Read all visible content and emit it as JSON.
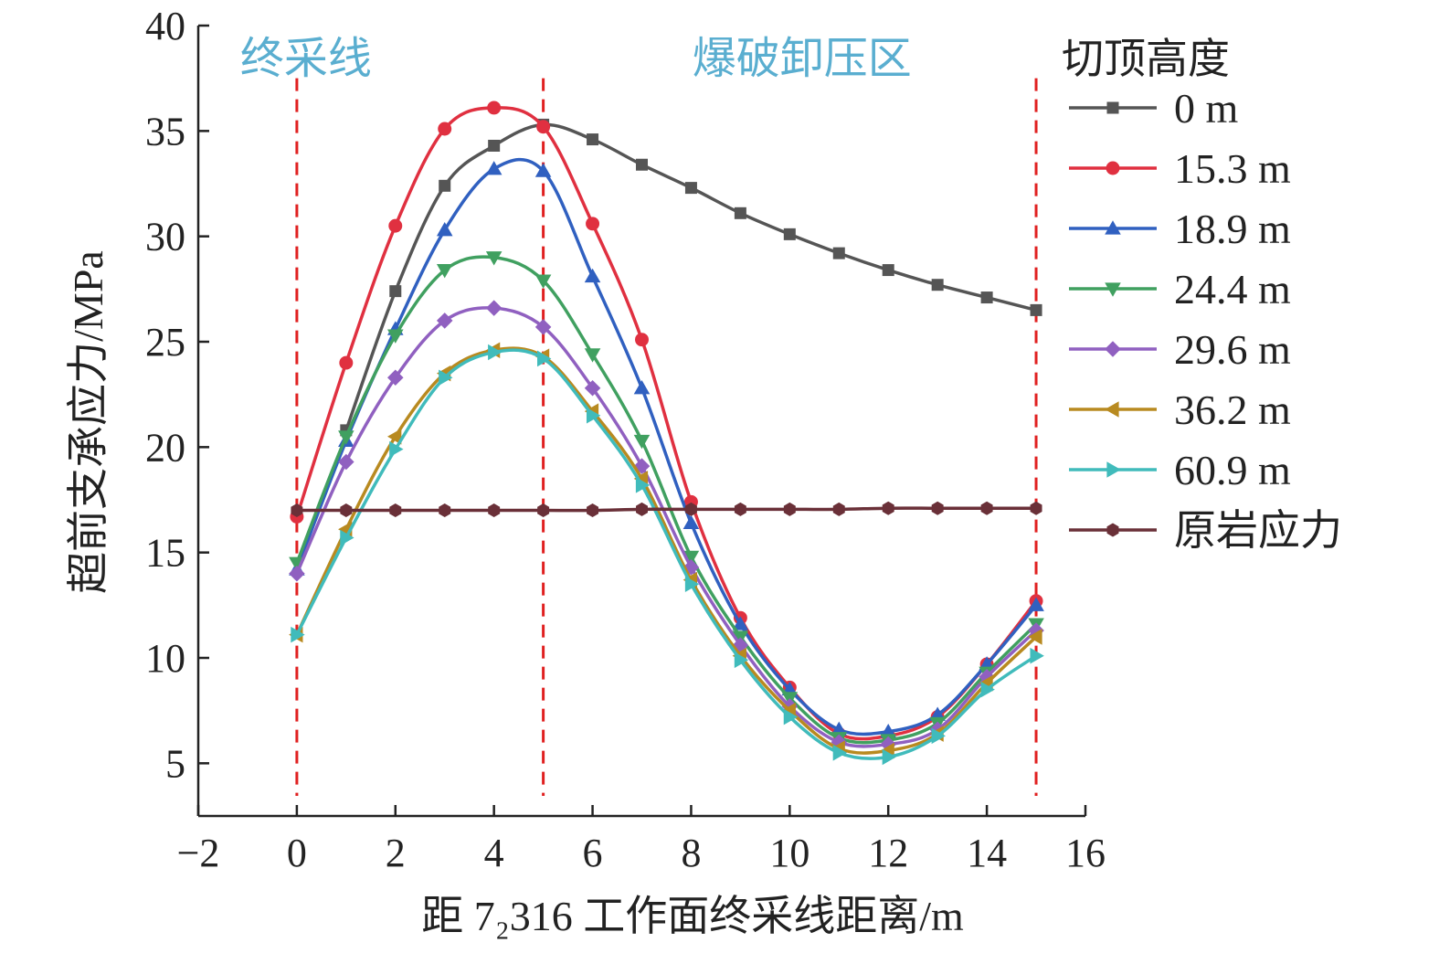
{
  "chart_data": {
    "type": "line",
    "title": "",
    "xlabel": "距 7₂316 工作面终采线距离/m",
    "ylabel": "超前支承应力/MPa",
    "xlim": [
      -2.0,
      16.0
    ],
    "ylim": [
      2.5,
      40.0
    ],
    "x_ticks": [
      -2,
      0,
      2,
      4,
      6,
      8,
      10,
      12,
      14,
      16
    ],
    "y_ticks": [
      5,
      10,
      15,
      20,
      25,
      30,
      35,
      40
    ],
    "x_tick_labels": [
      "−2",
      "0",
      "2",
      "4",
      "6",
      "8",
      "10",
      "12",
      "14",
      "16"
    ],
    "y_tick_labels": [
      "5",
      "10",
      "15",
      "20",
      "25",
      "30",
      "35",
      "40"
    ],
    "grid": false,
    "legend_title": "切顶高度",
    "legend_position": "right",
    "annotations": [
      {
        "text": "终采线",
        "x": 0,
        "color": "#5aaed0"
      },
      {
        "text": "爆破卸压区",
        "x": 10.25,
        "color": "#5aaed0"
      }
    ],
    "vlines": [
      0,
      5,
      15
    ],
    "vline_color": "#e02020",
    "x": [
      0,
      1,
      2,
      3,
      4,
      5,
      6,
      7,
      8,
      9,
      10,
      11,
      12,
      13,
      14,
      15
    ],
    "series": [
      {
        "name": "0 m",
        "color": "#555555",
        "marker": "square",
        "x": [
          1,
          2,
          3,
          4,
          5,
          6,
          7,
          8,
          9,
          10,
          11,
          12,
          13,
          14,
          15
        ],
        "values": [
          20.8,
          27.4,
          32.4,
          34.3,
          35.3,
          34.6,
          33.4,
          32.3,
          31.1,
          30.1,
          29.2,
          28.4,
          27.7,
          27.1,
          26.5
        ]
      },
      {
        "name": "15.3 m",
        "color": "#e03040",
        "marker": "circle",
        "values": [
          16.7,
          24.0,
          30.5,
          35.1,
          36.1,
          35.2,
          30.6,
          25.1,
          17.4,
          11.9,
          8.6,
          6.4,
          6.3,
          7.2,
          9.7,
          12.7
        ]
      },
      {
        "name": "18.9 m",
        "color": "#3060c0",
        "marker": "triangle-up",
        "values": [
          14.2,
          20.3,
          25.6,
          30.3,
          33.2,
          33.1,
          28.1,
          22.8,
          16.4,
          11.6,
          8.5,
          6.6,
          6.5,
          7.3,
          9.7,
          12.5
        ]
      },
      {
        "name": "24.4 m",
        "color": "#40a060",
        "marker": "triangle-down",
        "values": [
          14.5,
          20.5,
          25.3,
          28.4,
          29.0,
          27.9,
          24.4,
          20.3,
          14.8,
          11.0,
          8.1,
          6.2,
          6.1,
          6.9,
          9.3,
          11.6
        ]
      },
      {
        "name": "29.6 m",
        "color": "#9060c0",
        "marker": "diamond",
        "values": [
          14.0,
          19.3,
          23.3,
          26.0,
          26.6,
          25.7,
          22.8,
          19.1,
          14.3,
          10.6,
          7.7,
          6.0,
          5.9,
          6.6,
          9.1,
          11.3
        ]
      },
      {
        "name": "36.2 m",
        "color": "#b88a20",
        "marker": "triangle-left",
        "values": [
          11.1,
          16.1,
          20.5,
          23.5,
          24.6,
          24.3,
          21.7,
          18.5,
          13.7,
          10.1,
          7.5,
          5.7,
          5.6,
          6.4,
          8.8,
          11.0
        ]
      },
      {
        "name": "60.9 m",
        "color": "#40bbbb",
        "marker": "triangle-right",
        "values": [
          11.1,
          15.7,
          19.9,
          23.3,
          24.5,
          24.2,
          21.5,
          18.2,
          13.5,
          9.9,
          7.2,
          5.5,
          5.3,
          6.3,
          8.5,
          10.1
        ]
      },
      {
        "name": "原岩应力",
        "color": "#6a3038",
        "marker": "hexagon",
        "values": [
          17.0,
          17.0,
          17.0,
          17.0,
          17.0,
          17.0,
          17.0,
          17.05,
          17.05,
          17.05,
          17.05,
          17.05,
          17.1,
          17.1,
          17.1,
          17.1
        ]
      }
    ]
  }
}
